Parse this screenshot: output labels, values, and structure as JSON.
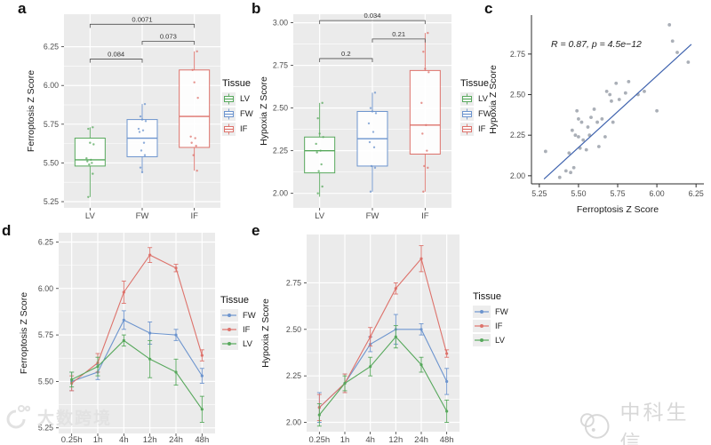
{
  "colors": {
    "panel_bg": "#EBEBEB",
    "grid": "#FFFFFF",
    "green": "#57A85C",
    "blue": "#6C94CE",
    "red": "#DD726B",
    "scatter_point": "#9BA1AA",
    "regression_line": "#3F63AE",
    "axis_text": "#4D4D4D"
  },
  "watermarks": {
    "bottom_left": "大数跨境",
    "bottom_right": "中科生信"
  },
  "chart_data": [
    {
      "id": "a",
      "label": "a",
      "type": "box",
      "ylabel": "Ferroptosis Z Score",
      "yticks": [
        5.25,
        5.5,
        5.75,
        6.0,
        6.25
      ],
      "ylim": [
        5.21,
        6.46
      ],
      "categories": [
        "LV",
        "FW",
        "IF"
      ],
      "series": [
        {
          "name": "LV",
          "color": "green",
          "q1": 5.48,
          "median": 5.52,
          "q3": 5.66,
          "whisker_low": 5.28,
          "whisker_high": 5.73,
          "points": [
            5.73,
            5.72,
            5.63,
            5.62,
            5.53,
            5.52,
            5.51,
            5.5,
            5.49,
            5.43,
            5.28
          ]
        },
        {
          "name": "FW",
          "color": "blue",
          "q1": 5.54,
          "median": 5.66,
          "q3": 5.78,
          "whisker_low": 5.44,
          "whisker_high": 5.88,
          "points": [
            5.88,
            5.8,
            5.78,
            5.77,
            5.72,
            5.71,
            5.7,
            5.63,
            5.58,
            5.55,
            5.47,
            5.44
          ]
        },
        {
          "name": "IF",
          "color": "red",
          "q1": 5.6,
          "median": 5.8,
          "q3": 6.1,
          "whisker_low": 5.45,
          "whisker_high": 6.22,
          "points": [
            6.22,
            6.1,
            6.02,
            5.92,
            5.67,
            5.66,
            5.63,
            5.61,
            5.55,
            5.45
          ]
        }
      ],
      "pvalues": [
        {
          "from": 0,
          "to": 1,
          "y": 6.17,
          "label": "0.084"
        },
        {
          "from": 1,
          "to": 2,
          "y": 6.285,
          "label": "0.073"
        },
        {
          "from": 0,
          "to": 2,
          "y": 6.395,
          "label": "0.0071"
        }
      ],
      "legend": {
        "title": "Tissue",
        "items": [
          {
            "label": "LV",
            "color": "green"
          },
          {
            "label": "FW",
            "color": "blue"
          },
          {
            "label": "IF",
            "color": "red"
          }
        ]
      }
    },
    {
      "id": "b",
      "label": "b",
      "type": "box",
      "ylabel": "Hypoxia Z Score",
      "yticks": [
        2.0,
        2.25,
        2.5,
        2.75,
        3.0
      ],
      "ylim": [
        1.915,
        3.05
      ],
      "categories": [
        "LV",
        "FW",
        "IF"
      ],
      "series": [
        {
          "name": "LV",
          "color": "green",
          "q1": 2.12,
          "median": 2.25,
          "q3": 2.33,
          "whisker_low": 1.98,
          "whisker_high": 2.53,
          "points": [
            2.53,
            2.44,
            2.35,
            2.33,
            2.29,
            2.25,
            2.24,
            2.17,
            2.13,
            2.04,
            2.0
          ]
        },
        {
          "name": "FW",
          "color": "blue",
          "q1": 2.16,
          "median": 2.32,
          "q3": 2.48,
          "whisker_low": 2.01,
          "whisker_high": 2.59,
          "points": [
            2.59,
            2.5,
            2.48,
            2.47,
            2.41,
            2.36,
            2.3,
            2.27,
            2.16,
            2.15,
            2.01
          ]
        },
        {
          "name": "IF",
          "color": "red",
          "q1": 2.23,
          "median": 2.4,
          "q3": 2.72,
          "whisker_low": 2.01,
          "whisker_high": 2.94,
          "points": [
            2.94,
            2.83,
            2.73,
            2.71,
            2.53,
            2.4,
            2.35,
            2.25,
            2.16,
            2.15,
            2.01
          ]
        }
      ],
      "pvalues": [
        {
          "from": 0,
          "to": 1,
          "y": 2.79,
          "label": "0.2"
        },
        {
          "from": 1,
          "to": 2,
          "y": 2.905,
          "label": "0.21"
        },
        {
          "from": 0,
          "to": 2,
          "y": 3.013,
          "label": "0.034"
        }
      ],
      "legend": {
        "title": "Tissue",
        "items": [
          {
            "label": "LV",
            "color": "green"
          },
          {
            "label": "FW",
            "color": "blue"
          },
          {
            "label": "IF",
            "color": "red"
          }
        ]
      }
    },
    {
      "id": "c",
      "label": "c",
      "type": "scatter",
      "xlabel": "Ferroptosis Z Score",
      "ylabel": "Hypoxia Z Score",
      "xticks": [
        5.25,
        5.5,
        5.75,
        6.0,
        6.25
      ],
      "yticks": [
        2.0,
        2.25,
        2.5,
        2.75
      ],
      "xlim": [
        5.2,
        6.3
      ],
      "ylim": [
        1.95,
        2.99
      ],
      "annotation": "R = 0.87, p = 4.5e−12",
      "fit_line": [
        [
          5.28,
          1.98
        ],
        [
          6.22,
          2.81
        ]
      ],
      "points": [
        [
          5.29,
          2.15
        ],
        [
          5.38,
          1.99
        ],
        [
          5.42,
          2.03
        ],
        [
          5.44,
          2.14
        ],
        [
          5.45,
          2.02
        ],
        [
          5.46,
          2.28
        ],
        [
          5.47,
          2.05
        ],
        [
          5.48,
          2.25
        ],
        [
          5.49,
          2.4
        ],
        [
          5.5,
          2.35
        ],
        [
          5.5,
          2.24
        ],
        [
          5.51,
          2.17
        ],
        [
          5.52,
          2.33
        ],
        [
          5.53,
          2.22
        ],
        [
          5.55,
          2.16
        ],
        [
          5.56,
          2.3
        ],
        [
          5.57,
          2.25
        ],
        [
          5.58,
          2.36
        ],
        [
          5.6,
          2.41
        ],
        [
          5.62,
          2.33
        ],
        [
          5.63,
          2.18
        ],
        [
          5.65,
          2.35
        ],
        [
          5.67,
          2.24
        ],
        [
          5.68,
          2.52
        ],
        [
          5.7,
          2.5
        ],
        [
          5.71,
          2.46
        ],
        [
          5.72,
          2.33
        ],
        [
          5.74,
          2.57
        ],
        [
          5.76,
          2.47
        ],
        [
          5.8,
          2.51
        ],
        [
          5.82,
          2.58
        ],
        [
          5.88,
          2.5
        ],
        [
          5.92,
          2.52
        ],
        [
          6.0,
          2.4
        ],
        [
          6.08,
          2.93
        ],
        [
          6.1,
          2.83
        ],
        [
          6.13,
          2.76
        ],
        [
          6.2,
          2.7
        ]
      ]
    },
    {
      "id": "d",
      "label": "d",
      "type": "line",
      "ylabel": "Ferroptosis Z Score",
      "yticks": [
        5.25,
        5.5,
        5.75,
        6.0,
        6.25
      ],
      "ylim": [
        5.22,
        6.3
      ],
      "categories": [
        "0.25h",
        "1h",
        "4h",
        "12h",
        "24h",
        "48h"
      ],
      "series": [
        {
          "name": "FW",
          "color": "blue",
          "values": [
            5.5,
            5.55,
            5.83,
            5.76,
            5.75,
            5.53
          ],
          "errors": [
            0.05,
            0.04,
            0.05,
            0.06,
            0.03,
            0.04
          ]
        },
        {
          "name": "IF",
          "color": "red",
          "values": [
            5.49,
            5.6,
            5.98,
            6.18,
            6.11,
            5.64
          ],
          "errors": [
            0.04,
            0.05,
            0.06,
            0.04,
            0.02,
            0.03
          ]
        },
        {
          "name": "LV",
          "color": "green",
          "values": [
            5.51,
            5.58,
            5.72,
            5.62,
            5.55,
            5.35
          ],
          "errors": [
            0.04,
            0.05,
            0.03,
            0.1,
            0.07,
            0.07
          ]
        }
      ],
      "legend": {
        "title": "Tissue",
        "items": [
          {
            "label": "FW",
            "color": "blue"
          },
          {
            "label": "IF",
            "color": "red"
          },
          {
            "label": "LV",
            "color": "green"
          }
        ]
      }
    },
    {
      "id": "e",
      "label": "e",
      "type": "line",
      "ylabel": "Hypoxia Z Score",
      "yticks": [
        2.0,
        2.25,
        2.5,
        2.75
      ],
      "ylim": [
        1.95,
        3.01
      ],
      "categories": [
        "0.25h",
        "1h",
        "4h",
        "12h",
        "24h",
        "48h"
      ],
      "series": [
        {
          "name": "FW",
          "color": "blue",
          "values": [
            2.08,
            2.21,
            2.42,
            2.5,
            2.5,
            2.22
          ],
          "errors": [
            0.08,
            0.05,
            0.04,
            0.08,
            0.03,
            0.07
          ]
        },
        {
          "name": "IF",
          "color": "red",
          "values": [
            2.08,
            2.21,
            2.46,
            2.72,
            2.88,
            2.37
          ],
          "errors": [
            0.07,
            0.05,
            0.05,
            0.03,
            0.07,
            0.02
          ]
        },
        {
          "name": "LV",
          "color": "green",
          "values": [
            2.04,
            2.21,
            2.3,
            2.46,
            2.31,
            2.06
          ],
          "errors": [
            0.06,
            0.04,
            0.05,
            0.06,
            0.04,
            0.06
          ]
        }
      ],
      "legend": {
        "title": "Tissue",
        "items": [
          {
            "label": "FW",
            "color": "blue"
          },
          {
            "label": "IF",
            "color": "red"
          },
          {
            "label": "LV",
            "color": "green"
          }
        ]
      }
    }
  ]
}
